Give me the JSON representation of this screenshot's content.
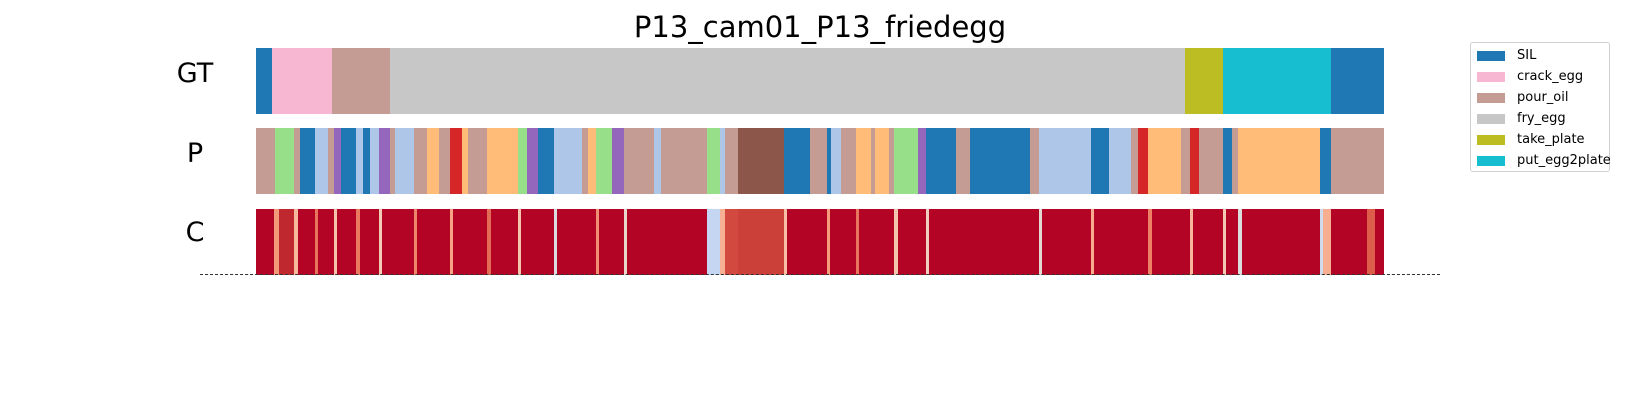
{
  "chart_data": {
    "type": "segmentation",
    "title": "P13_cam01_P13_friedegg",
    "rows": [
      {
        "label": "GT",
        "segments": [
          {
            "start": 0.0,
            "end": 0.014,
            "color": "#1f77b4"
          },
          {
            "start": 0.014,
            "end": 0.067,
            "color": "#f7b6d2"
          },
          {
            "start": 0.067,
            "end": 0.119,
            "color": "#c49c94"
          },
          {
            "start": 0.119,
            "end": 0.824,
            "color": "#c7c7c7"
          },
          {
            "start": 0.824,
            "end": 0.857,
            "color": "#bcbd22"
          },
          {
            "start": 0.857,
            "end": 0.953,
            "color": "#17becf"
          },
          {
            "start": 0.953,
            "end": 1.0,
            "color": "#1f77b4"
          }
        ]
      },
      {
        "label": "P",
        "segments": [
          {
            "start": 0.0,
            "end": 0.017,
            "color": "#c49c94"
          },
          {
            "start": 0.017,
            "end": 0.034,
            "color": "#98df8a"
          },
          {
            "start": 0.034,
            "end": 0.039,
            "color": "#c49c94"
          },
          {
            "start": 0.039,
            "end": 0.052,
            "color": "#1f77b4"
          },
          {
            "start": 0.052,
            "end": 0.064,
            "color": "#aec7e8"
          },
          {
            "start": 0.064,
            "end": 0.069,
            "color": "#c49c94"
          },
          {
            "start": 0.069,
            "end": 0.075,
            "color": "#9467bd"
          },
          {
            "start": 0.075,
            "end": 0.089,
            "color": "#1f77b4"
          },
          {
            "start": 0.089,
            "end": 0.095,
            "color": "#aec7e8"
          },
          {
            "start": 0.095,
            "end": 0.101,
            "color": "#1f77b4"
          },
          {
            "start": 0.101,
            "end": 0.109,
            "color": "#aec7e8"
          },
          {
            "start": 0.109,
            "end": 0.119,
            "color": "#9467bd"
          },
          {
            "start": 0.119,
            "end": 0.123,
            "color": "#c49c94"
          },
          {
            "start": 0.123,
            "end": 0.14,
            "color": "#aec7e8"
          },
          {
            "start": 0.14,
            "end": 0.152,
            "color": "#c49c94"
          },
          {
            "start": 0.152,
            "end": 0.162,
            "color": "#ffbb78"
          },
          {
            "start": 0.162,
            "end": 0.172,
            "color": "#c49c94"
          },
          {
            "start": 0.172,
            "end": 0.183,
            "color": "#d62728"
          },
          {
            "start": 0.183,
            "end": 0.188,
            "color": "#ffbb78"
          },
          {
            "start": 0.188,
            "end": 0.205,
            "color": "#c49c94"
          },
          {
            "start": 0.205,
            "end": 0.232,
            "color": "#ffbb78"
          },
          {
            "start": 0.232,
            "end": 0.24,
            "color": "#98df8a"
          },
          {
            "start": 0.24,
            "end": 0.25,
            "color": "#9467bd"
          },
          {
            "start": 0.25,
            "end": 0.264,
            "color": "#1f77b4"
          },
          {
            "start": 0.264,
            "end": 0.289,
            "color": "#aec7e8"
          },
          {
            "start": 0.289,
            "end": 0.294,
            "color": "#c49c94"
          },
          {
            "start": 0.294,
            "end": 0.301,
            "color": "#ffbb78"
          },
          {
            "start": 0.301,
            "end": 0.316,
            "color": "#98df8a"
          },
          {
            "start": 0.316,
            "end": 0.326,
            "color": "#9467bd"
          },
          {
            "start": 0.326,
            "end": 0.353,
            "color": "#c49c94"
          },
          {
            "start": 0.353,
            "end": 0.359,
            "color": "#aec7e8"
          },
          {
            "start": 0.359,
            "end": 0.4,
            "color": "#c49c94"
          },
          {
            "start": 0.4,
            "end": 0.411,
            "color": "#98df8a"
          },
          {
            "start": 0.411,
            "end": 0.416,
            "color": "#aec7e8"
          },
          {
            "start": 0.416,
            "end": 0.427,
            "color": "#c49c94"
          },
          {
            "start": 0.427,
            "end": 0.468,
            "color": "#8c564b"
          },
          {
            "start": 0.468,
            "end": 0.491,
            "color": "#1f77b4"
          },
          {
            "start": 0.491,
            "end": 0.506,
            "color": "#c49c94"
          },
          {
            "start": 0.506,
            "end": 0.51,
            "color": "#1f77b4"
          },
          {
            "start": 0.51,
            "end": 0.519,
            "color": "#aec7e8"
          },
          {
            "start": 0.519,
            "end": 0.532,
            "color": "#c49c94"
          },
          {
            "start": 0.532,
            "end": 0.545,
            "color": "#ffbb78"
          },
          {
            "start": 0.545,
            "end": 0.549,
            "color": "#c49c94"
          },
          {
            "start": 0.549,
            "end": 0.561,
            "color": "#ffbb78"
          },
          {
            "start": 0.561,
            "end": 0.566,
            "color": "#c49c94"
          },
          {
            "start": 0.566,
            "end": 0.587,
            "color": "#98df8a"
          },
          {
            "start": 0.587,
            "end": 0.594,
            "color": "#9467bd"
          },
          {
            "start": 0.594,
            "end": 0.621,
            "color": "#1f77b4"
          },
          {
            "start": 0.621,
            "end": 0.633,
            "color": "#c49c94"
          },
          {
            "start": 0.633,
            "end": 0.686,
            "color": "#1f77b4"
          },
          {
            "start": 0.686,
            "end": 0.694,
            "color": "#c49c94"
          },
          {
            "start": 0.694,
            "end": 0.74,
            "color": "#aec7e8"
          },
          {
            "start": 0.74,
            "end": 0.756,
            "color": "#1f77b4"
          },
          {
            "start": 0.756,
            "end": 0.776,
            "color": "#aec7e8"
          },
          {
            "start": 0.776,
            "end": 0.782,
            "color": "#c49c94"
          },
          {
            "start": 0.782,
            "end": 0.791,
            "color": "#d62728"
          },
          {
            "start": 0.791,
            "end": 0.82,
            "color": "#ffbb78"
          },
          {
            "start": 0.82,
            "end": 0.828,
            "color": "#c49c94"
          },
          {
            "start": 0.828,
            "end": 0.836,
            "color": "#d62728"
          },
          {
            "start": 0.836,
            "end": 0.857,
            "color": "#c49c94"
          },
          {
            "start": 0.857,
            "end": 0.865,
            "color": "#1f77b4"
          },
          {
            "start": 0.865,
            "end": 0.871,
            "color": "#c49c94"
          },
          {
            "start": 0.871,
            "end": 0.943,
            "color": "#ffbb78"
          },
          {
            "start": 0.943,
            "end": 0.953,
            "color": "#1f77b4"
          },
          {
            "start": 0.953,
            "end": 1.0,
            "color": "#c49c94"
          }
        ]
      },
      {
        "label": "C",
        "segments": [
          {
            "start": 0.0,
            "end": 0.016,
            "color": "#b40426"
          },
          {
            "start": 0.016,
            "end": 0.02,
            "color": "#f4987a"
          },
          {
            "start": 0.02,
            "end": 0.034,
            "color": "#c0282f"
          },
          {
            "start": 0.034,
            "end": 0.037,
            "color": "#f7b89c"
          },
          {
            "start": 0.037,
            "end": 0.052,
            "color": "#b40426"
          },
          {
            "start": 0.052,
            "end": 0.055,
            "color": "#e7745b"
          },
          {
            "start": 0.055,
            "end": 0.069,
            "color": "#b40426"
          },
          {
            "start": 0.069,
            "end": 0.072,
            "color": "#f5c1a9"
          },
          {
            "start": 0.072,
            "end": 0.089,
            "color": "#b40426"
          },
          {
            "start": 0.089,
            "end": 0.092,
            "color": "#e97a5f"
          },
          {
            "start": 0.092,
            "end": 0.109,
            "color": "#b40426"
          },
          {
            "start": 0.109,
            "end": 0.112,
            "color": "#f2cbb7"
          },
          {
            "start": 0.112,
            "end": 0.14,
            "color": "#b40426"
          },
          {
            "start": 0.14,
            "end": 0.143,
            "color": "#ee8468"
          },
          {
            "start": 0.143,
            "end": 0.172,
            "color": "#b40426"
          },
          {
            "start": 0.172,
            "end": 0.175,
            "color": "#f6a283"
          },
          {
            "start": 0.175,
            "end": 0.205,
            "color": "#b40426"
          },
          {
            "start": 0.205,
            "end": 0.208,
            "color": "#e36c55"
          },
          {
            "start": 0.208,
            "end": 0.232,
            "color": "#b40426"
          },
          {
            "start": 0.232,
            "end": 0.235,
            "color": "#f4c5ad"
          },
          {
            "start": 0.235,
            "end": 0.264,
            "color": "#b40426"
          },
          {
            "start": 0.264,
            "end": 0.267,
            "color": "#dadce0"
          },
          {
            "start": 0.267,
            "end": 0.301,
            "color": "#b40426"
          },
          {
            "start": 0.301,
            "end": 0.304,
            "color": "#f18f71"
          },
          {
            "start": 0.304,
            "end": 0.326,
            "color": "#b40426"
          },
          {
            "start": 0.326,
            "end": 0.329,
            "color": "#e9d5cb"
          },
          {
            "start": 0.329,
            "end": 0.4,
            "color": "#b40426"
          },
          {
            "start": 0.4,
            "end": 0.411,
            "color": "#c5d6f2"
          },
          {
            "start": 0.411,
            "end": 0.416,
            "color": "#f7b093"
          },
          {
            "start": 0.416,
            "end": 0.427,
            "color": "#d1493f"
          },
          {
            "start": 0.427,
            "end": 0.468,
            "color": "#cc403a"
          },
          {
            "start": 0.468,
            "end": 0.471,
            "color": "#f6bfa6"
          },
          {
            "start": 0.471,
            "end": 0.506,
            "color": "#b40426"
          },
          {
            "start": 0.506,
            "end": 0.509,
            "color": "#f59c7d"
          },
          {
            "start": 0.509,
            "end": 0.532,
            "color": "#b40426"
          },
          {
            "start": 0.532,
            "end": 0.535,
            "color": "#e8765c"
          },
          {
            "start": 0.535,
            "end": 0.566,
            "color": "#b40426"
          },
          {
            "start": 0.566,
            "end": 0.569,
            "color": "#f4c5ad"
          },
          {
            "start": 0.569,
            "end": 0.594,
            "color": "#b40426"
          },
          {
            "start": 0.594,
            "end": 0.597,
            "color": "#efcebd"
          },
          {
            "start": 0.597,
            "end": 0.694,
            "color": "#b40426"
          },
          {
            "start": 0.694,
            "end": 0.697,
            "color": "#e3d9d3"
          },
          {
            "start": 0.697,
            "end": 0.74,
            "color": "#b40426"
          },
          {
            "start": 0.74,
            "end": 0.743,
            "color": "#f7ac8e"
          },
          {
            "start": 0.743,
            "end": 0.791,
            "color": "#b40426"
          },
          {
            "start": 0.791,
            "end": 0.794,
            "color": "#ec8165"
          },
          {
            "start": 0.794,
            "end": 0.828,
            "color": "#b40426"
          },
          {
            "start": 0.828,
            "end": 0.831,
            "color": "#f7b599"
          },
          {
            "start": 0.831,
            "end": 0.857,
            "color": "#b40426"
          },
          {
            "start": 0.857,
            "end": 0.86,
            "color": "#f3c8b2"
          },
          {
            "start": 0.86,
            "end": 0.871,
            "color": "#b40426"
          },
          {
            "start": 0.871,
            "end": 0.874,
            "color": "#dcdddd"
          },
          {
            "start": 0.874,
            "end": 0.943,
            "color": "#b40426"
          },
          {
            "start": 0.943,
            "end": 0.946,
            "color": "#cfdaea"
          },
          {
            "start": 0.946,
            "end": 0.953,
            "color": "#f7ad90"
          },
          {
            "start": 0.953,
            "end": 0.985,
            "color": "#b40426"
          },
          {
            "start": 0.985,
            "end": 0.992,
            "color": "#dc5d4a"
          },
          {
            "start": 0.992,
            "end": 1.0,
            "color": "#b40426"
          }
        ]
      }
    ],
    "legend": {
      "position": "top-right",
      "entries": [
        {
          "name": "SIL",
          "color": "#1f77b4"
        },
        {
          "name": "crack_egg",
          "color": "#f7b6d2"
        },
        {
          "name": "pour_oil",
          "color": "#c49c94"
        },
        {
          "name": "fry_egg",
          "color": "#c7c7c7"
        },
        {
          "name": "take_plate",
          "color": "#bcbd22"
        },
        {
          "name": "put_egg2plate",
          "color": "#17becf"
        }
      ]
    }
  }
}
